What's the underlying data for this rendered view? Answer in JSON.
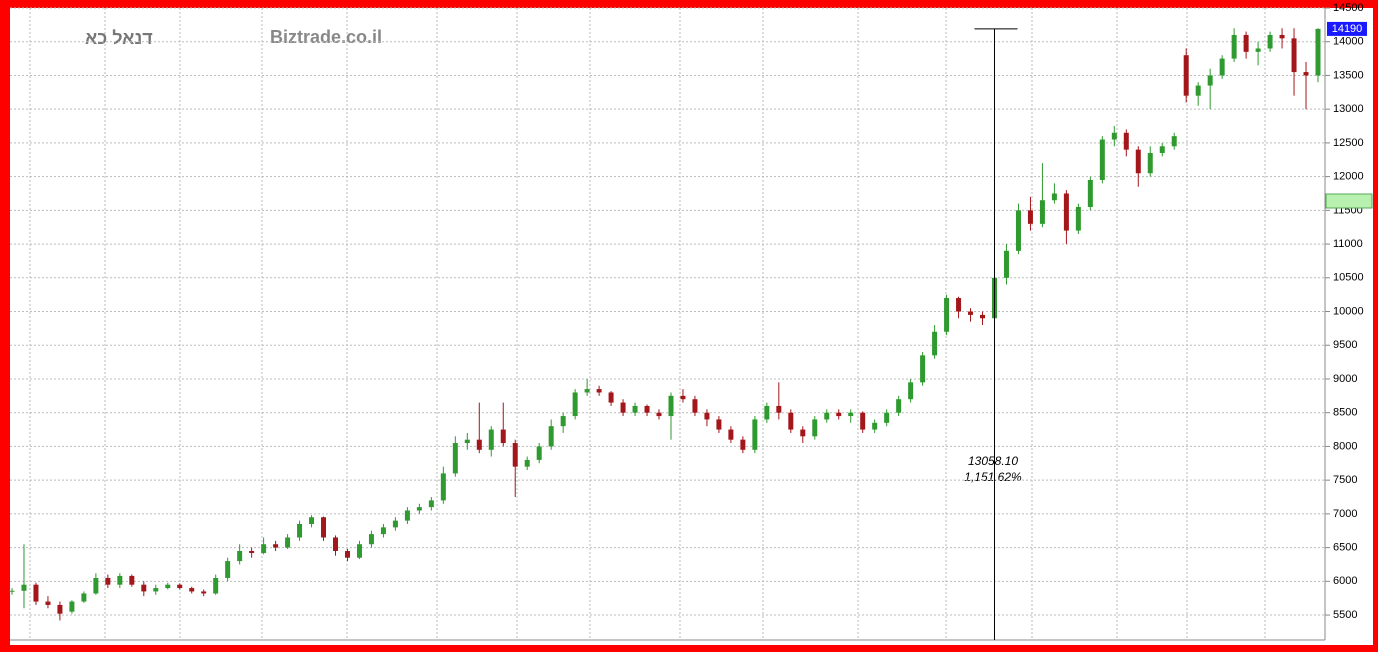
{
  "chart_data": {
    "type": "candlestick",
    "title": "דנאל כא",
    "watermark": "Biztrade.co.il",
    "last_price_label": {
      "value": 14190,
      "label": "14190"
    },
    "measure": {
      "value_label": "13058.10",
      "percent_label": "1,151.62%"
    },
    "up_color": "#2f9a2f",
    "down_color": "#a3161a",
    "ylim": [
      5130,
      14500
    ],
    "yticks": [
      5500,
      6000,
      6500,
      7000,
      7500,
      8000,
      8500,
      9000,
      9500,
      10000,
      10500,
      11000,
      11500,
      12000,
      12500,
      13000,
      13500,
      14000,
      14500
    ],
    "grid": true,
    "ohlc": [
      [
        5850,
        5900,
        5800,
        5860
      ],
      [
        5860,
        6550,
        5600,
        5950
      ],
      [
        5950,
        5980,
        5650,
        5700
      ],
      [
        5700,
        5780,
        5600,
        5650
      ],
      [
        5650,
        5700,
        5420,
        5520
      ],
      [
        5550,
        5720,
        5520,
        5700
      ],
      [
        5700,
        5850,
        5680,
        5820
      ],
      [
        5820,
        6120,
        5800,
        6050
      ],
      [
        6050,
        6100,
        5900,
        5950
      ],
      [
        5950,
        6120,
        5900,
        6080
      ],
      [
        6080,
        6100,
        5920,
        5950
      ],
      [
        5950,
        6000,
        5780,
        5850
      ],
      [
        5850,
        5950,
        5800,
        5900
      ],
      [
        5900,
        5980,
        5880,
        5950
      ],
      [
        5950,
        5970,
        5880,
        5900
      ],
      [
        5900,
        5920,
        5820,
        5850
      ],
      [
        5850,
        5880,
        5780,
        5820
      ],
      [
        5820,
        6100,
        5800,
        6050
      ],
      [
        6050,
        6350,
        6000,
        6300
      ],
      [
        6300,
        6550,
        6250,
        6450
      ],
      [
        6450,
        6500,
        6350,
        6420
      ],
      [
        6420,
        6650,
        6400,
        6550
      ],
      [
        6550,
        6600,
        6450,
        6500
      ],
      [
        6500,
        6700,
        6480,
        6650
      ],
      [
        6650,
        6900,
        6600,
        6850
      ],
      [
        6850,
        6980,
        6800,
        6950
      ],
      [
        6950,
        6960,
        6600,
        6650
      ],
      [
        6650,
        6680,
        6380,
        6450
      ],
      [
        6450,
        6480,
        6300,
        6350
      ],
      [
        6350,
        6600,
        6330,
        6550
      ],
      [
        6550,
        6750,
        6500,
        6700
      ],
      [
        6700,
        6850,
        6650,
        6800
      ],
      [
        6800,
        6950,
        6750,
        6900
      ],
      [
        6900,
        7100,
        6850,
        7050
      ],
      [
        7050,
        7150,
        7000,
        7100
      ],
      [
        7100,
        7250,
        7050,
        7200
      ],
      [
        7200,
        7700,
        7150,
        7600
      ],
      [
        7600,
        8150,
        7550,
        8050
      ],
      [
        8050,
        8200,
        7950,
        8100
      ],
      [
        8100,
        8650,
        7900,
        7950
      ],
      [
        7950,
        8300,
        7850,
        8250
      ],
      [
        8250,
        8650,
        8000,
        8050
      ],
      [
        8050,
        8100,
        7250,
        7700
      ],
      [
        7700,
        7850,
        7650,
        7800
      ],
      [
        7800,
        8050,
        7750,
        8000
      ],
      [
        8000,
        8400,
        7950,
        8300
      ],
      [
        8300,
        8500,
        8200,
        8450
      ],
      [
        8450,
        8850,
        8400,
        8800
      ],
      [
        8800,
        9000,
        8750,
        8850
      ],
      [
        8850,
        8900,
        8750,
        8800
      ],
      [
        8800,
        8820,
        8600,
        8650
      ],
      [
        8650,
        8700,
        8450,
        8500
      ],
      [
        8500,
        8650,
        8450,
        8600
      ],
      [
        8600,
        8620,
        8450,
        8500
      ],
      [
        8500,
        8550,
        8400,
        8450
      ],
      [
        8450,
        8800,
        8100,
        8750
      ],
      [
        8750,
        8850,
        8650,
        8700
      ],
      [
        8700,
        8750,
        8450,
        8500
      ],
      [
        8500,
        8550,
        8300,
        8400
      ],
      [
        8400,
        8450,
        8200,
        8250
      ],
      [
        8250,
        8300,
        8050,
        8100
      ],
      [
        8100,
        8150,
        7900,
        7950
      ],
      [
        7950,
        8450,
        7900,
        8400
      ],
      [
        8400,
        8650,
        8350,
        8600
      ],
      [
        8600,
        8950,
        8400,
        8500
      ],
      [
        8500,
        8550,
        8200,
        8250
      ],
      [
        8250,
        8300,
        8050,
        8150
      ],
      [
        8150,
        8450,
        8100,
        8400
      ],
      [
        8400,
        8550,
        8350,
        8500
      ],
      [
        8500,
        8550,
        8400,
        8450
      ],
      [
        8450,
        8550,
        8350,
        8500
      ],
      [
        8500,
        8520,
        8200,
        8250
      ],
      [
        8250,
        8400,
        8200,
        8350
      ],
      [
        8350,
        8550,
        8300,
        8500
      ],
      [
        8500,
        8750,
        8450,
        8700
      ],
      [
        8700,
        9000,
        8650,
        8950
      ],
      [
        8950,
        9400,
        8900,
        9350
      ],
      [
        9350,
        9800,
        9300,
        9700
      ],
      [
        9700,
        10250,
        9650,
        10200
      ],
      [
        10200,
        10220,
        9900,
        10000
      ],
      [
        10000,
        10050,
        9850,
        9950
      ],
      [
        9950,
        10000,
        9800,
        9900
      ],
      [
        9900,
        11600,
        9850,
        10500
      ],
      [
        10500,
        11000,
        10400,
        10900
      ],
      [
        10900,
        11600,
        10850,
        11500
      ],
      [
        11500,
        11700,
        11200,
        11300
      ],
      [
        11300,
        12200,
        11250,
        11650
      ],
      [
        11650,
        11900,
        11600,
        11750
      ],
      [
        11750,
        11800,
        11000,
        11200
      ],
      [
        11200,
        11600,
        11150,
        11550
      ],
      [
        11550,
        12000,
        11500,
        11950
      ],
      [
        11950,
        12600,
        11900,
        12550
      ],
      [
        12550,
        12750,
        12450,
        12650
      ],
      [
        12650,
        12700,
        12300,
        12400
      ],
      [
        12400,
        12450,
        11850,
        12050
      ],
      [
        12050,
        12450,
        12000,
        12350
      ],
      [
        12350,
        12500,
        12300,
        12450
      ],
      [
        12450,
        12650,
        12400,
        12600
      ],
      [
        13800,
        13900,
        13100,
        13200
      ],
      [
        13200,
        13400,
        13050,
        13350
      ],
      [
        13350,
        13600,
        13000,
        13500
      ],
      [
        13500,
        13800,
        13450,
        13750
      ],
      [
        13750,
        14200,
        13700,
        14100
      ],
      [
        14100,
        14150,
        13750,
        13850
      ],
      [
        13850,
        14000,
        13650,
        13900
      ],
      [
        13900,
        14150,
        13850,
        14100
      ],
      [
        14100,
        14200,
        13900,
        14050
      ],
      [
        14050,
        14200,
        13200,
        13550
      ],
      [
        13550,
        13700,
        13000,
        13500
      ],
      [
        13500,
        14200,
        13400,
        14190
      ]
    ]
  }
}
